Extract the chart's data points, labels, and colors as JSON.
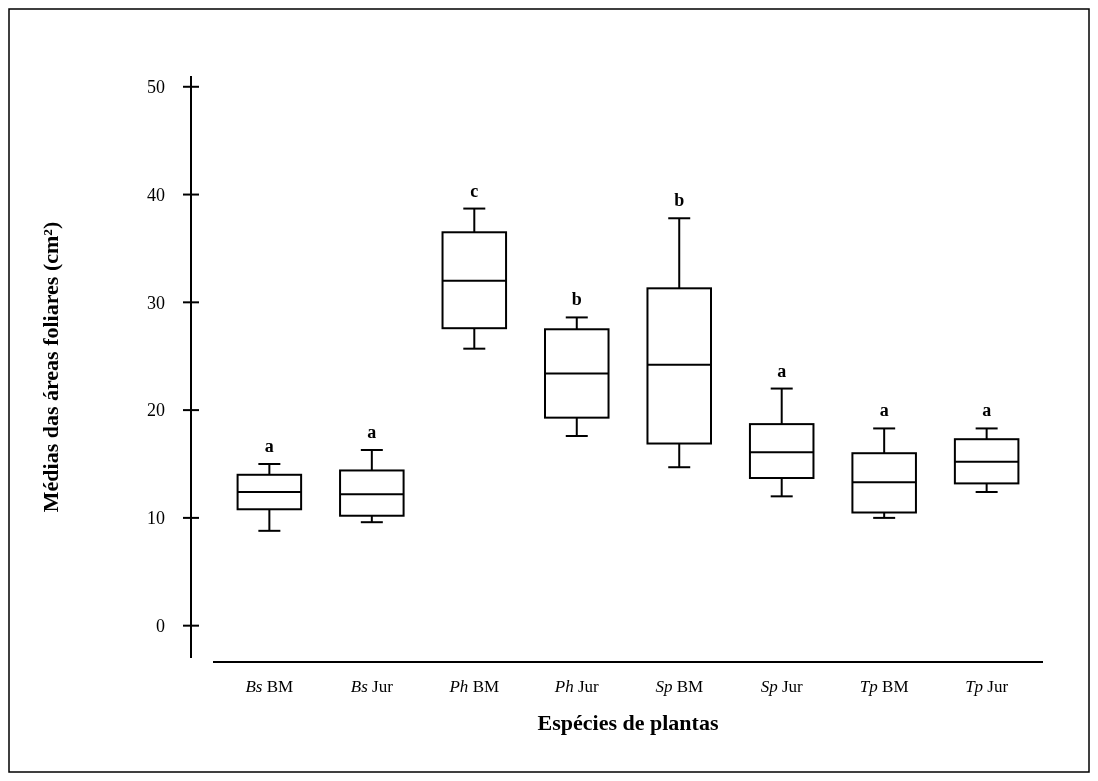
{
  "chart_data": {
    "type": "box",
    "xlabel": "Espécies de plantas",
    "ylabel": "Médias das áreas foliares (cm²)",
    "categories": [
      "Bs BM",
      "Bs Jur",
      "Ph BM",
      "Ph Jur",
      "Sp BM",
      "Sp Jur",
      "Tp BM",
      "Tp Jur"
    ],
    "boxes": [
      {
        "low": 8.8,
        "q1": 10.8,
        "median": 12.4,
        "q3": 14.0,
        "high": 15.0
      },
      {
        "low": 9.6,
        "q1": 10.2,
        "median": 12.2,
        "q3": 14.4,
        "high": 16.3
      },
      {
        "low": 25.7,
        "q1": 27.6,
        "median": 32.0,
        "q3": 36.5,
        "high": 38.7
      },
      {
        "low": 17.6,
        "q1": 19.3,
        "median": 23.4,
        "q3": 27.5,
        "high": 28.6
      },
      {
        "low": 14.7,
        "q1": 16.9,
        "median": 24.2,
        "q3": 31.3,
        "high": 37.8
      },
      {
        "low": 12.0,
        "q1": 13.7,
        "median": 16.1,
        "q3": 18.7,
        "high": 22.0
      },
      {
        "low": 10.0,
        "q1": 10.5,
        "median": 13.3,
        "q3": 16.0,
        "high": 18.3
      },
      {
        "low": 12.4,
        "q1": 13.2,
        "median": 15.2,
        "q3": 17.3,
        "high": 18.3
      }
    ],
    "color": "#000000",
    "ylim": [
      -3,
      51
    ],
    "yticks": [
      0,
      10,
      20,
      30,
      40,
      50
    ],
    "annotations": [
      {
        "text": "a",
        "x": "Bs BM",
        "y": 15.0
      },
      {
        "text": "a",
        "x": "Bs Jur",
        "y": 16.3
      },
      {
        "text": "c",
        "x": "Ph BM",
        "y": 38.7
      },
      {
        "text": "b",
        "x": "Ph Jur",
        "y": 28.6
      },
      {
        "text": "b",
        "x": "Sp BM",
        "y": 37.8
      },
      {
        "text": "a",
        "x": "Sp Jur",
        "y": 22.0
      },
      {
        "text": "a",
        "x": "Tp BM",
        "y": 18.3
      },
      {
        "text": "a",
        "x": "Tp Jur",
        "y": 18.3
      }
    ]
  }
}
